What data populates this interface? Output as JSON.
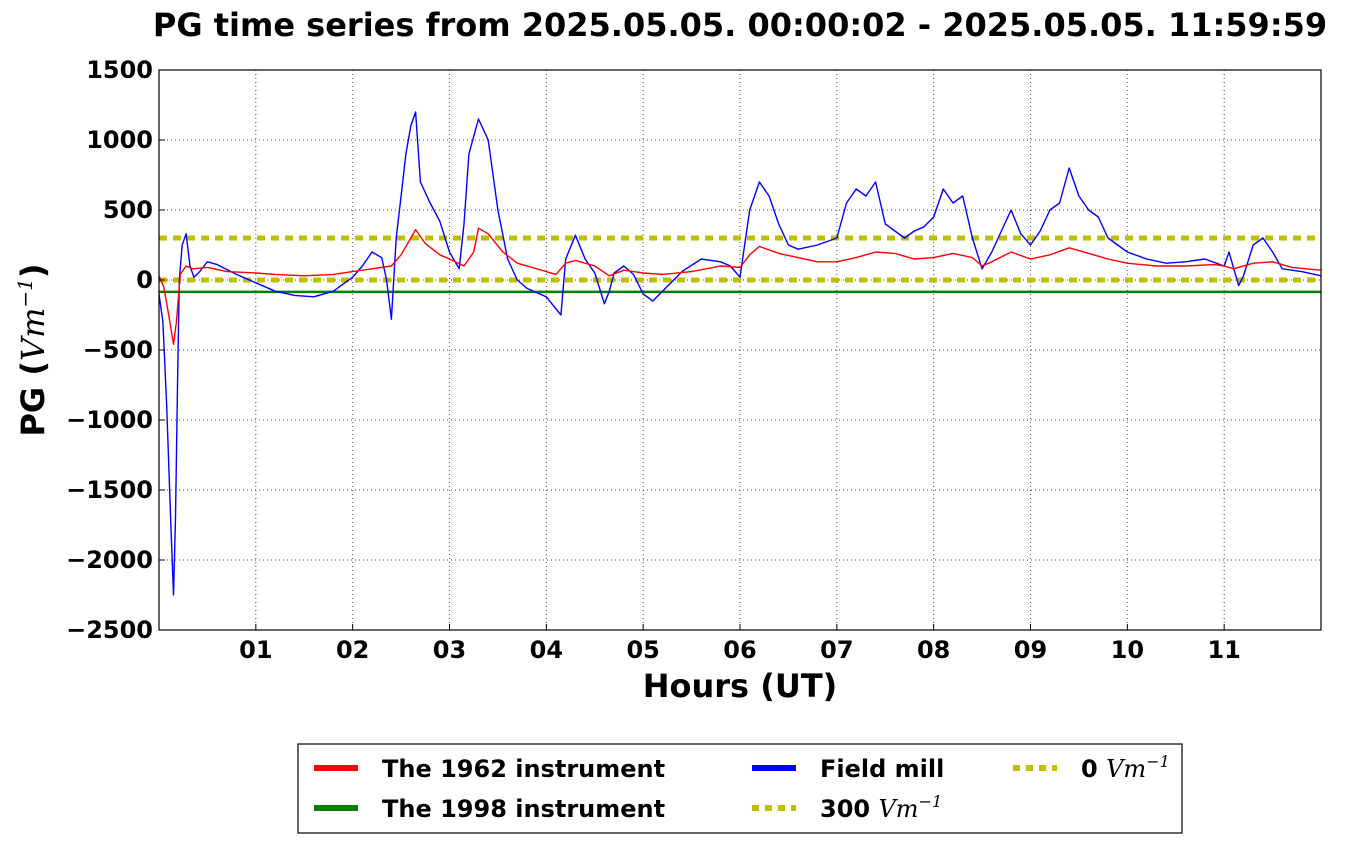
{
  "chart_data": {
    "type": "line",
    "title": "PG time series from 2025.05.05. 00:00:02 - 2025.05.05. 11:59:59",
    "xlabel": "Hours (UT)",
    "ylabel": "PG (",
    "ylabel_unit": "Vm",
    "ylabel_exp": "−1",
    "ylabel_close": ")",
    "xlim": [
      0,
      12
    ],
    "ylim": [
      -2500,
      1500
    ],
    "x_ticks": [
      1,
      2,
      3,
      4,
      5,
      6,
      7,
      8,
      9,
      10,
      11
    ],
    "x_tick_labels": [
      "01",
      "02",
      "03",
      "04",
      "05",
      "06",
      "07",
      "08",
      "09",
      "10",
      "11"
    ],
    "y_ticks": [
      -2500,
      -2000,
      -1500,
      -1000,
      -500,
      0,
      500,
      1000,
      1500
    ],
    "y_tick_labels": [
      "−2500",
      "−2000",
      "−1500",
      "−1000",
      "−500",
      "0",
      "500",
      "1000",
      "1500"
    ],
    "grid": true,
    "legend_position": "bottom-center",
    "series": [
      {
        "name": "The 1962 instrument",
        "color": "#ff0000",
        "style": "solid",
        "x": [
          0,
          0.05,
          0.1,
          0.15,
          0.18,
          0.22,
          0.28,
          0.35,
          0.5,
          0.7,
          1.0,
          1.2,
          1.5,
          1.8,
          2.0,
          2.2,
          2.4,
          2.5,
          2.6,
          2.65,
          2.75,
          2.9,
          3.0,
          3.15,
          3.25,
          3.3,
          3.4,
          3.55,
          3.7,
          3.9,
          4.1,
          4.2,
          4.3,
          4.5,
          4.65,
          4.8,
          5.0,
          5.2,
          5.5,
          5.8,
          6.0,
          6.1,
          6.2,
          6.4,
          6.6,
          6.8,
          7.0,
          7.2,
          7.4,
          7.6,
          7.8,
          8.0,
          8.2,
          8.4,
          8.5,
          8.6,
          8.8,
          9.0,
          9.2,
          9.4,
          9.6,
          9.8,
          10.0,
          10.3,
          10.6,
          10.9,
          11.0,
          11.1,
          11.3,
          11.5,
          11.7,
          12.0
        ],
        "y": [
          30,
          -50,
          -250,
          -460,
          -300,
          40,
          100,
          80,
          90,
          60,
          50,
          40,
          30,
          40,
          60,
          80,
          100,
          180,
          300,
          360,
          260,
          180,
          150,
          100,
          200,
          370,
          330,
          200,
          120,
          80,
          40,
          120,
          140,
          100,
          30,
          70,
          50,
          40,
          60,
          100,
          90,
          180,
          240,
          190,
          160,
          130,
          130,
          160,
          200,
          190,
          150,
          160,
          190,
          160,
          100,
          130,
          200,
          150,
          180,
          230,
          190,
          150,
          120,
          100,
          100,
          110,
          100,
          80,
          120,
          130,
          90,
          70
        ]
      },
      {
        "name": "The 1998 instrument",
        "color": "#008000",
        "style": "solid",
        "x": [
          0,
          12
        ],
        "y": [
          -85,
          -85
        ]
      },
      {
        "name": "Field mill",
        "color": "#0000ff",
        "style": "solid",
        "x": [
          0,
          0.04,
          0.08,
          0.12,
          0.15,
          0.17,
          0.19,
          0.21,
          0.24,
          0.28,
          0.32,
          0.36,
          0.42,
          0.5,
          0.6,
          0.8,
          1.0,
          1.2,
          1.4,
          1.6,
          1.8,
          2.0,
          2.1,
          2.2,
          2.3,
          2.35,
          2.4,
          2.45,
          2.5,
          2.55,
          2.6,
          2.65,
          2.7,
          2.8,
          2.9,
          3.0,
          3.1,
          3.15,
          3.2,
          3.3,
          3.4,
          3.5,
          3.6,
          3.7,
          3.8,
          4.0,
          4.15,
          4.2,
          4.3,
          4.4,
          4.5,
          4.6,
          4.65,
          4.7,
          4.8,
          4.9,
          5.0,
          5.1,
          5.2,
          5.4,
          5.6,
          5.8,
          5.9,
          6.0,
          6.1,
          6.2,
          6.3,
          6.4,
          6.5,
          6.6,
          6.8,
          7.0,
          7.1,
          7.2,
          7.3,
          7.4,
          7.5,
          7.6,
          7.7,
          7.8,
          7.9,
          8.0,
          8.1,
          8.2,
          8.3,
          8.4,
          8.5,
          8.6,
          8.7,
          8.8,
          8.9,
          9.0,
          9.1,
          9.2,
          9.3,
          9.4,
          9.5,
          9.6,
          9.7,
          9.8,
          10.0,
          10.2,
          10.4,
          10.6,
          10.8,
          11.0,
          11.05,
          11.1,
          11.15,
          11.2,
          11.3,
          11.4,
          11.5,
          11.6,
          11.8,
          12.0
        ],
        "y": [
          -100,
          -300,
          -900,
          -1700,
          -2250,
          -1700,
          -800,
          0,
          250,
          330,
          100,
          20,
          60,
          130,
          110,
          40,
          -20,
          -80,
          -110,
          -120,
          -80,
          20,
          100,
          200,
          160,
          0,
          -280,
          300,
          600,
          900,
          1100,
          1200,
          700,
          550,
          420,
          200,
          80,
          400,
          900,
          1150,
          1000,
          500,
          150,
          0,
          -60,
          -120,
          -250,
          150,
          320,
          150,
          50,
          -170,
          -80,
          50,
          100,
          40,
          -100,
          -150,
          -80,
          60,
          150,
          130,
          100,
          20,
          500,
          700,
          600,
          400,
          250,
          220,
          250,
          300,
          550,
          650,
          600,
          700,
          400,
          350,
          300,
          350,
          380,
          450,
          650,
          550,
          600,
          300,
          80,
          200,
          350,
          500,
          330,
          250,
          350,
          500,
          550,
          800,
          600,
          500,
          450,
          300,
          200,
          150,
          120,
          130,
          150,
          100,
          200,
          80,
          -40,
          30,
          250,
          300,
          200,
          80,
          60,
          30
        ]
      },
      {
        "name": "300 Vm⁻¹",
        "label_num": "300",
        "label_unit": "Vm",
        "label_exp": "−1",
        "color": "#bfbf00",
        "style": "dotted",
        "x": [
          0,
          12
        ],
        "y": [
          300,
          300
        ]
      },
      {
        "name": "0 Vm⁻¹",
        "label_num": "0",
        "label_unit": "Vm",
        "label_exp": "−1",
        "color": "#bfbf00",
        "style": "dotted",
        "x": [
          0,
          12
        ],
        "y": [
          0,
          0
        ]
      }
    ]
  }
}
